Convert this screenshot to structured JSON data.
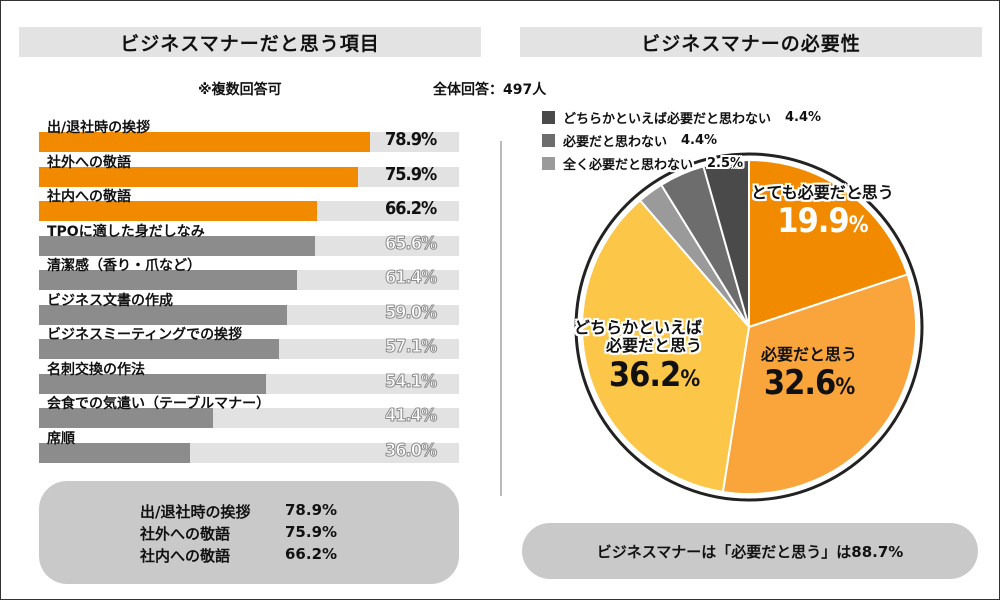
{
  "left_panel": {
    "title": "ビジネスマナーだと思う項目",
    "note_multi": "※複数回答可",
    "note_total": "全体回答：497人"
  },
  "right_panel": {
    "title": "ビジネスマナーの必要性"
  },
  "chart_data": [
    {
      "type": "bar",
      "orientation": "horizontal",
      "title": "ビジネスマナーだと思う項目",
      "categories": [
        "出/退社時の挨拶",
        "社外への敬語",
        "社内への敬語",
        "TPOに適した身だしなみ",
        "清潔感（香り・爪など）",
        "ビジネス文書の作成",
        "ビジネスミーティングでの挨拶",
        "名刺交換の作法",
        "会食での気遣い（テーブルマナー）",
        "席順"
      ],
      "values": [
        78.9,
        75.9,
        66.2,
        65.6,
        61.4,
        59.0,
        57.1,
        54.1,
        41.4,
        36.0
      ],
      "value_labels": [
        "78.9%",
        "75.9%",
        "66.2%",
        "65.6%",
        "61.4%",
        "59.0%",
        "57.1%",
        "54.1%",
        "41.4%",
        "36.0%"
      ],
      "highlight_count": 3,
      "xlim": [
        0,
        100
      ],
      "colors": {
        "highlight": "#f28a00",
        "normal": "#8c8c8c",
        "track": "#e2e2e2"
      }
    },
    {
      "type": "pie",
      "title": "ビジネスマナーの必要性",
      "slices": [
        {
          "name": "とても必要だと思う",
          "value": 19.9,
          "label": "19.9",
          "color": "#f28a00"
        },
        {
          "name": "必要だと思う",
          "value": 32.6,
          "label": "32.6",
          "color": "#f9a53c"
        },
        {
          "name": "どちらかといえば必要だと思う",
          "value": 36.2,
          "label": "36.2",
          "color": "#fcc748"
        },
        {
          "name": "全く必要だと思わない",
          "value": 2.5,
          "label": "2.5%",
          "color": "#9a9a9a"
        },
        {
          "name": "必要だと思わない",
          "value": 4.4,
          "label": "4.4%",
          "color": "#6d6d6d"
        },
        {
          "name": "どちらかといえば必要だと思わない",
          "value": 4.4,
          "label": "4.4%",
          "color": "#4a4a4a"
        }
      ],
      "percent_sign": "%",
      "label_line1_dochira": "どちらかといえば",
      "label_line2_dochira": "必要だと思う"
    }
  ],
  "summary_left": [
    {
      "label": "出/退社時の挨拶",
      "value": "78.9%"
    },
    {
      "label": "社外への敬語",
      "value": "75.9%"
    },
    {
      "label": "社内への敬語",
      "value": "66.2%"
    }
  ],
  "summary_right": "ビジネスマナーは「必要だと思う」は88.7%"
}
